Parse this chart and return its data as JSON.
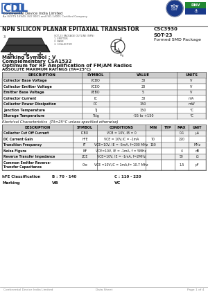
{
  "title_main": "NPN SILICON PLANAR EPITAXIAL TRANSISTOR",
  "part_number": "CSC3930",
  "package": "SOT-23",
  "package_sub": "Formed SMD Package",
  "company": "Continental Device India Limited",
  "company_sub": "An ISO/TS 16949, ISO 9001 and ISO-14001 Certified Company",
  "marking_symbol": "Marking Symbol : V",
  "complementary": "Complementary CSA1532",
  "optimum": "Optimum for RF Amplification of FM/AM Radios",
  "abs_max_title": "ABSOLUTE MAXIMUM RATINGS (TA=25°C)",
  "abs_headers": [
    "DESCRIPTION",
    "SYMBOL",
    "VALUE",
    "UNITS"
  ],
  "abs_rows": [
    [
      "Collector Base Voltage",
      "VCBO",
      "30",
      "V"
    ],
    [
      "Collector Emitter Voltage",
      "VCEO",
      "20",
      "V"
    ],
    [
      "Emitter Base Voltage",
      "VEBO",
      "5",
      "V"
    ],
    [
      "Collector Current",
      "IC",
      "30",
      "mA"
    ],
    [
      "Collector Power Dissipation",
      "PC",
      "150",
      "mW"
    ],
    [
      "Junction Temperature",
      "TJ",
      "150",
      "°C"
    ],
    [
      "Storage Temperature",
      "Tstg",
      "-55 to +150",
      "°C"
    ]
  ],
  "elec_title": "Electrical Characteristics  (TA=25°C unless specified otherwise)",
  "elec_headers": [
    "DESCRIPTION",
    "SYMBOL",
    "CONDITIONS",
    "MIN",
    "TYP",
    "MAX",
    "UNIT"
  ],
  "elec_rows": [
    [
      "Collector Cut Off Current",
      "ICBO",
      "VCB = 10V, IB = 0",
      "",
      "",
      "0.1",
      "µA"
    ],
    [
      "DC Current Gain",
      "hFE",
      "VCE = 10V,IC = -1mA",
      "70",
      "",
      "220",
      ""
    ],
    [
      "Transition Frequency",
      "fT",
      "VCE=10V, IE = -5mA, f=200 MHz",
      "150",
      "",
      "",
      "MHz"
    ],
    [
      "Noise Figure",
      "NF",
      "VCE=10V, IE = -1mA, f = 5MHz",
      "",
      "",
      "4",
      "dB"
    ],
    [
      "Reverse Transfer Impedance",
      "ZCE",
      "VCE=10V, IE = -1mA, f=2MHz",
      "",
      "",
      "50",
      "Ω"
    ],
    [
      "Common Emitter Reverse-\nTransfer Capacitance",
      "Cre",
      "VCE =10V,IC = 1mA,f= 10.7 MHz",
      "",
      "",
      "1.5",
      "pF"
    ]
  ],
  "hfe_class_label": "hFE Classification",
  "hfe_classes": [
    "B : 70 - 140",
    "C : 110 - 220"
  ],
  "marking_label": "Marking",
  "markings": [
    "VB",
    "VC"
  ],
  "footer_company": "Continental Device India Limited",
  "footer_center": "Data Sheet",
  "footer_right": "Page 1 of 4",
  "bg_color": "#ffffff",
  "table_line_color": "#555555",
  "watermark_color": "#c8d8e8"
}
